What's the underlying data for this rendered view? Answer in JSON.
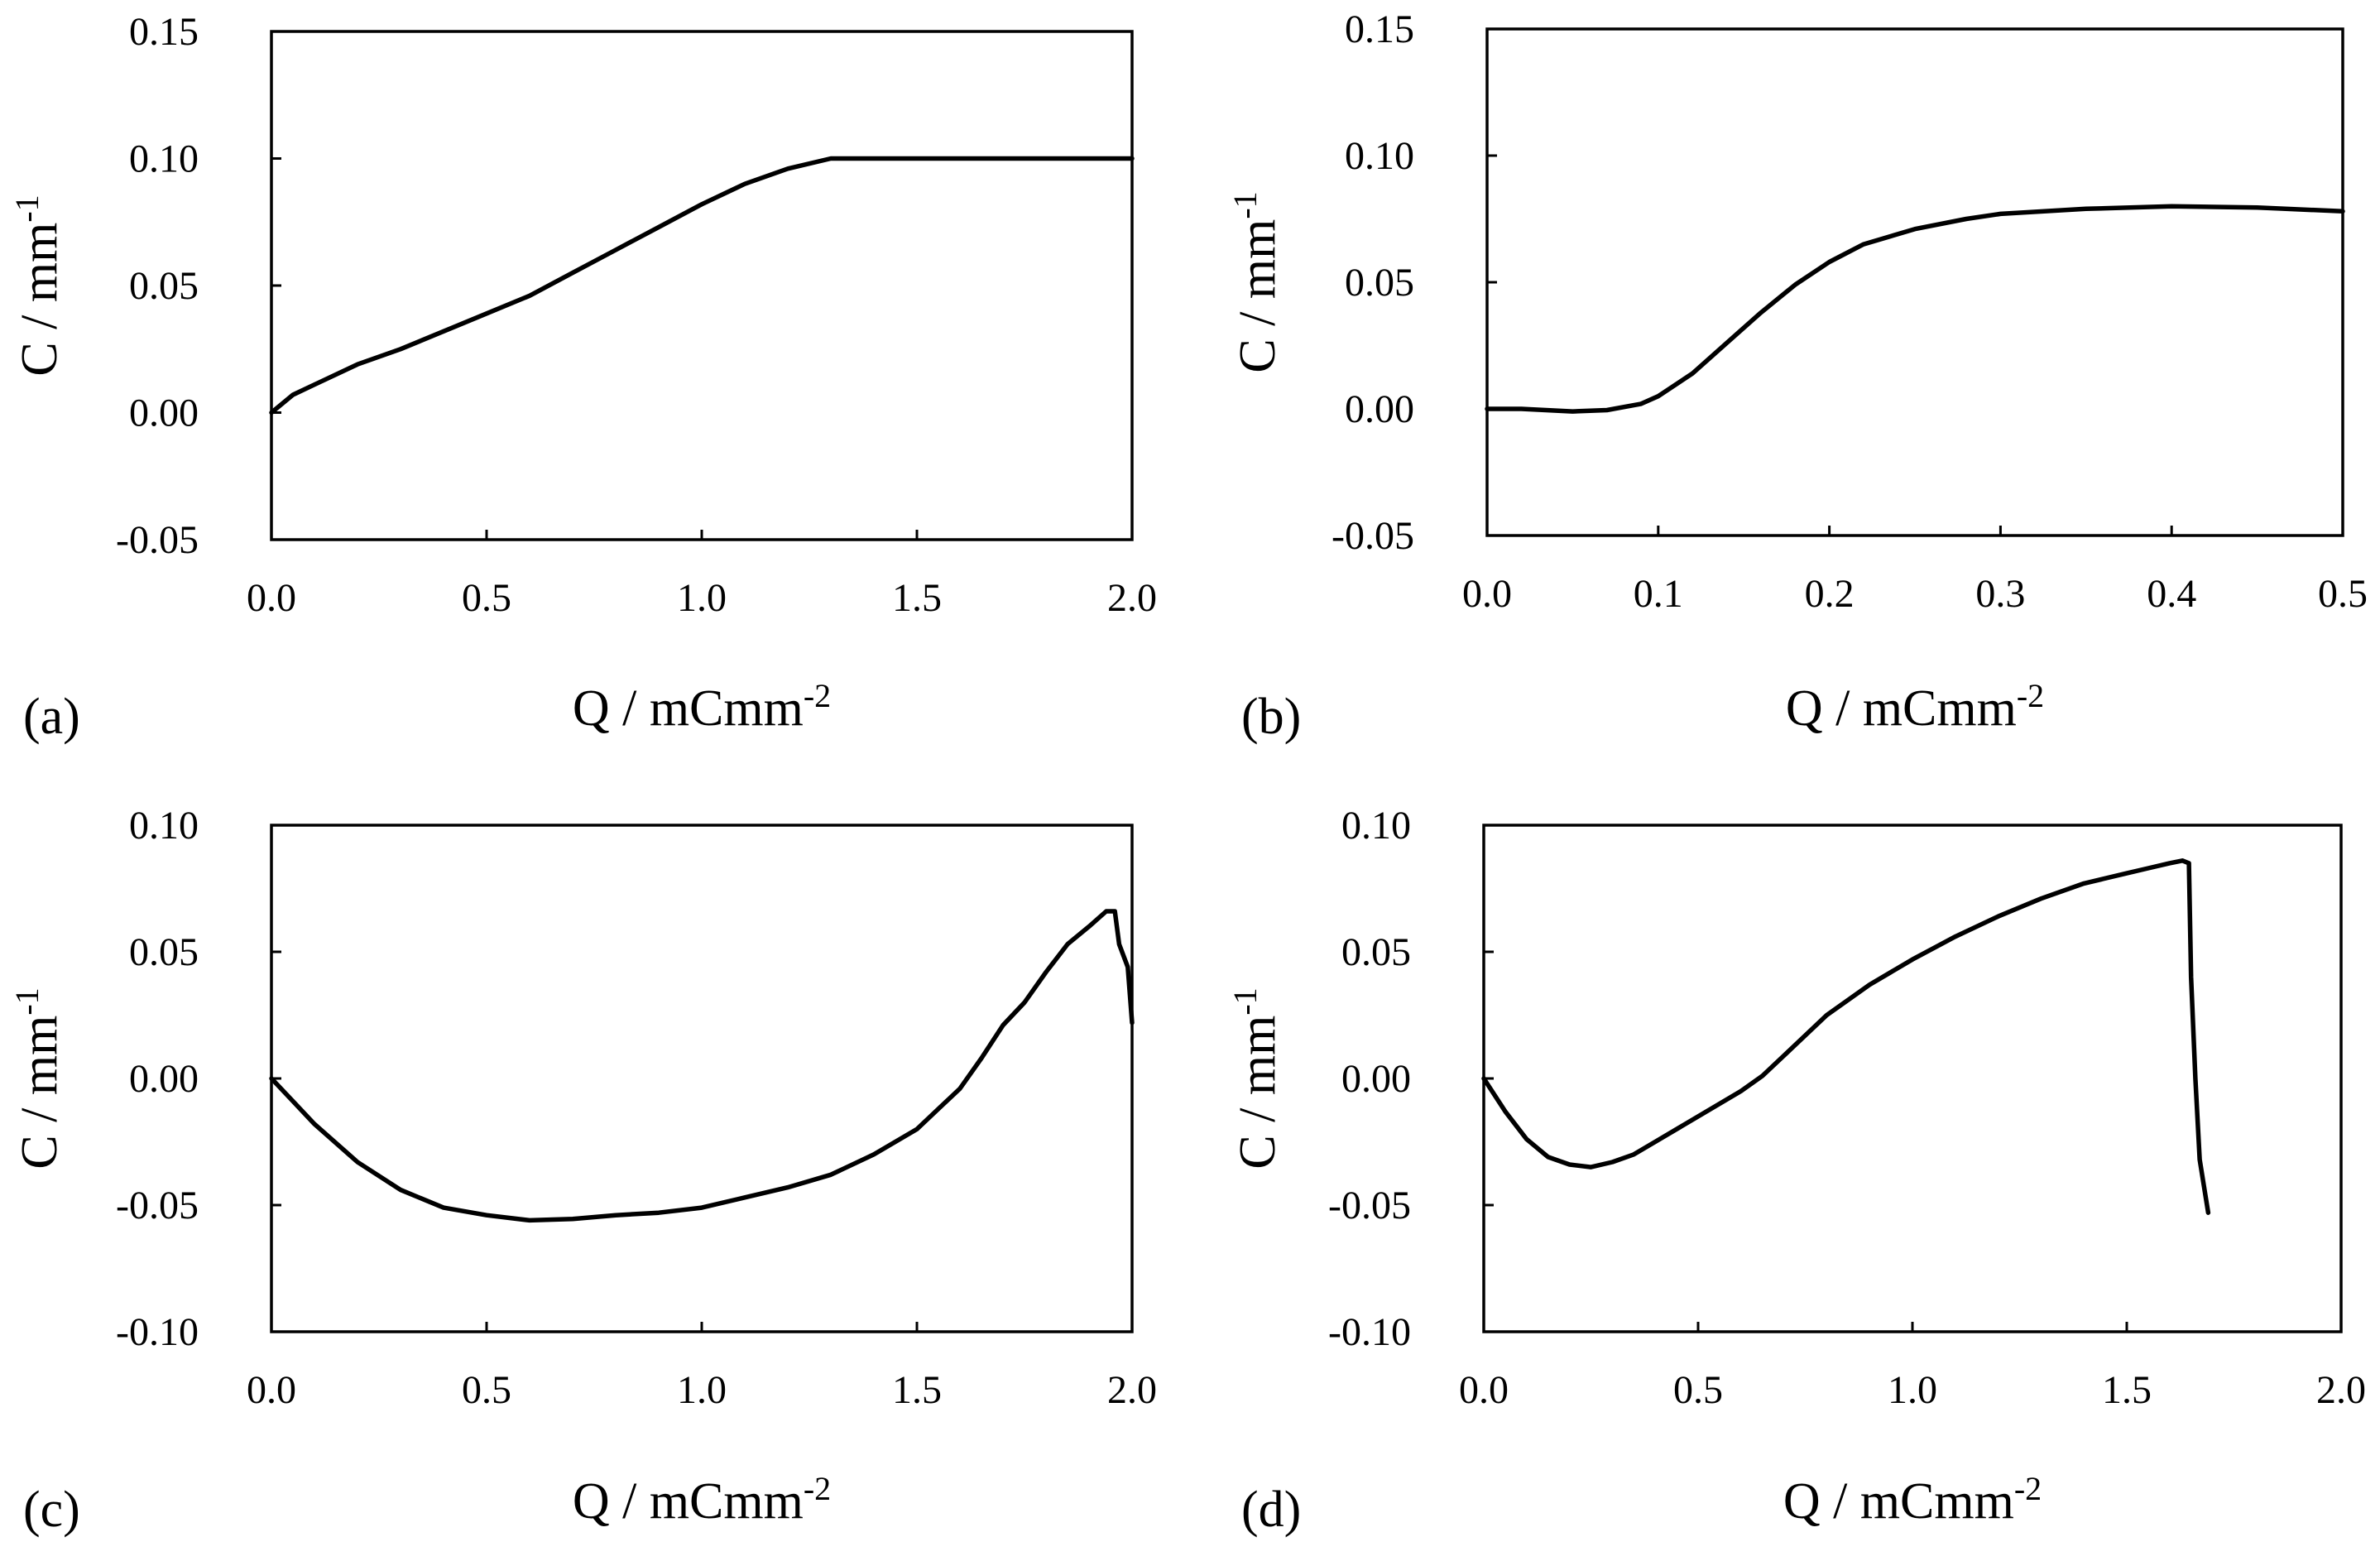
{
  "chart_data": [
    {
      "type": "line",
      "panel_label": "(a)",
      "xlabel": "Q / mCmm",
      "xlabel_sup": "-2",
      "ylabel": "C / mm",
      "ylabel_sup": "-1",
      "xlim": [
        0,
        2
      ],
      "ylim": [
        -0.05,
        0.15
      ],
      "xticks": [
        0,
        0.5,
        1,
        1.5,
        2
      ],
      "xtick_labels": [
        "0.0",
        "0.5",
        "1.0",
        "1.5",
        "2.0"
      ],
      "yticks": [
        -0.05,
        0,
        0.05,
        0.1,
        0.15
      ],
      "ytick_labels": [
        "-0.05",
        "0.00",
        "0.05",
        "0.10",
        "0.15"
      ],
      "grid": false,
      "series": [
        {
          "name": "C",
          "x": [
            0,
            0.05,
            0.1,
            0.2,
            0.3,
            0.4,
            0.5,
            0.6,
            0.7,
            0.8,
            0.9,
            1.0,
            1.1,
            1.2,
            1.3,
            1.36,
            1.5,
            1.75,
            2.0
          ],
          "y": [
            0.0,
            0.007,
            0.011,
            0.019,
            0.025,
            0.032,
            0.039,
            0.046,
            0.055,
            0.064,
            0.073,
            0.082,
            0.09,
            0.096,
            0.1,
            0.1,
            0.1,
            0.1,
            0.1
          ]
        }
      ]
    },
    {
      "type": "line",
      "panel_label": "(b)",
      "xlabel": "Q / mCmm",
      "xlabel_sup": "-2",
      "ylabel": "C / mm",
      "ylabel_sup": "-1",
      "xlim": [
        0,
        0.5
      ],
      "ylim": [
        -0.05,
        0.15
      ],
      "xticks": [
        0,
        0.1,
        0.2,
        0.3,
        0.4,
        0.5
      ],
      "xtick_labels": [
        "0.0",
        "0.1",
        "0.2",
        "0.3",
        "0.4",
        "0.5"
      ],
      "yticks": [
        -0.05,
        0,
        0.05,
        0.1,
        0.15
      ],
      "ytick_labels": [
        "-0.05",
        "0.00",
        "0.05",
        "0.10",
        "0.15"
      ],
      "grid": false,
      "series": [
        {
          "name": "C",
          "x": [
            0,
            0.02,
            0.05,
            0.07,
            0.09,
            0.1,
            0.12,
            0.14,
            0.16,
            0.18,
            0.2,
            0.22,
            0.25,
            0.28,
            0.3,
            0.35,
            0.4,
            0.45,
            0.5
          ],
          "y": [
            0.0,
            0.0,
            -0.001,
            -0.0005,
            0.002,
            0.005,
            0.014,
            0.026,
            0.038,
            0.049,
            0.058,
            0.065,
            0.071,
            0.075,
            0.077,
            0.079,
            0.08,
            0.0795,
            0.078
          ]
        }
      ]
    },
    {
      "type": "line",
      "panel_label": "(c)",
      "xlabel": "Q / mCmm",
      "xlabel_sup": "-2",
      "ylabel": "C / mm",
      "ylabel_sup": "-1",
      "xlim": [
        0,
        2
      ],
      "ylim": [
        -0.1,
        0.1
      ],
      "xticks": [
        0,
        0.5,
        1,
        1.5,
        2
      ],
      "xtick_labels": [
        "0.0",
        "0.5",
        "1.0",
        "1.5",
        "2.0"
      ],
      "yticks": [
        -0.1,
        -0.05,
        0,
        0.05,
        0.1
      ],
      "ytick_labels": [
        "-0.10",
        "-0.05",
        "0.00",
        "0.05",
        "0.10"
      ],
      "grid": false,
      "series": [
        {
          "name": "C",
          "x": [
            0,
            0.05,
            0.1,
            0.2,
            0.3,
            0.4,
            0.5,
            0.6,
            0.7,
            0.8,
            0.9,
            1.0,
            1.1,
            1.2,
            1.3,
            1.4,
            1.5,
            1.6,
            1.65,
            1.7,
            1.75,
            1.8,
            1.85,
            1.9,
            1.94,
            1.96,
            1.97,
            1.99,
            2.0
          ],
          "y": [
            0.0,
            -0.009,
            -0.018,
            -0.033,
            -0.044,
            -0.051,
            -0.054,
            -0.056,
            -0.0555,
            -0.054,
            -0.053,
            -0.051,
            -0.047,
            -0.043,
            -0.038,
            -0.03,
            -0.02,
            -0.004,
            0.008,
            0.021,
            0.03,
            0.042,
            0.053,
            0.06,
            0.066,
            0.066,
            0.053,
            0.044,
            0.022
          ]
        }
      ]
    },
    {
      "type": "line",
      "panel_label": "(d)",
      "xlabel": "Q / mCmm",
      "xlabel_sup": "-2",
      "ylabel": "C / mm",
      "ylabel_sup": "-1",
      "xlim": [
        0,
        2
      ],
      "ylim": [
        -0.1,
        0.1
      ],
      "xticks": [
        0,
        0.5,
        1,
        1.5,
        2
      ],
      "xtick_labels": [
        "0.0",
        "0.5",
        "1.0",
        "1.5",
        "2.0"
      ],
      "yticks": [
        -0.1,
        -0.05,
        0,
        0.05,
        0.1
      ],
      "ytick_labels": [
        "-0.10",
        "-0.05",
        "0.00",
        "0.05",
        "0.10"
      ],
      "grid": false,
      "series": [
        {
          "name": "C",
          "x": [
            0,
            0.05,
            0.1,
            0.15,
            0.2,
            0.25,
            0.3,
            0.35,
            0.4,
            0.5,
            0.6,
            0.65,
            0.7,
            0.8,
            0.9,
            1.0,
            1.1,
            1.2,
            1.3,
            1.4,
            1.5,
            1.55,
            1.6,
            1.63,
            1.645,
            1.65,
            1.66,
            1.67,
            1.69
          ],
          "y": [
            0.0,
            -0.013,
            -0.024,
            -0.031,
            -0.034,
            -0.035,
            -0.033,
            -0.03,
            -0.025,
            -0.015,
            -0.005,
            0.001,
            0.009,
            0.025,
            0.037,
            0.047,
            0.056,
            0.064,
            0.071,
            0.077,
            0.081,
            0.083,
            0.085,
            0.086,
            0.085,
            0.04,
            0.0,
            -0.032,
            -0.053
          ]
        }
      ]
    }
  ]
}
